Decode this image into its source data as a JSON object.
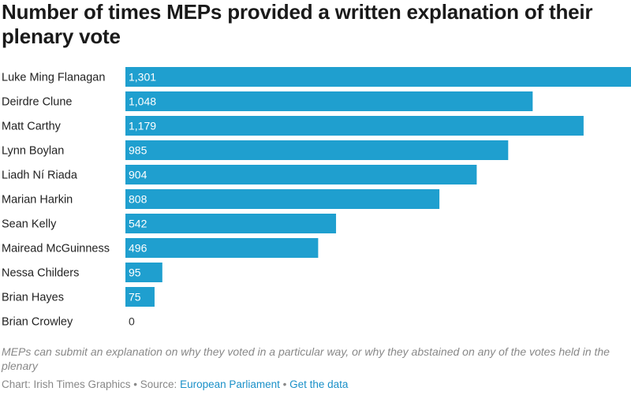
{
  "title": "Number of times MEPs provided a written explanation of their plenary vote",
  "note": "MEPs can submit an explanation on why they voted in a particular way, or why they abstained on any of the votes held in the plenary",
  "footer": {
    "credit": "Chart: Irish Times Graphics",
    "sep1": " • Source: ",
    "source": "European Parliament",
    "sep2": " • ",
    "data_link": "Get the data"
  },
  "colors": {
    "bar": "#1f9fcf",
    "label_inside": "#ffffff",
    "label_outside": "#333333"
  },
  "chart_data": {
    "type": "bar",
    "orientation": "horizontal",
    "categories": [
      "Luke Ming Flanagan",
      "Deirdre Clune",
      "Matt Carthy",
      "Lynn Boylan",
      "Liadh Ní Riada",
      "Marian Harkin",
      "Sean Kelly",
      "Mairead McGuinness",
      "Nessa Childers",
      "Brian Hayes",
      "Brian Crowley"
    ],
    "values": [
      1301,
      1048,
      1179,
      985,
      904,
      808,
      542,
      496,
      95,
      75,
      0
    ],
    "value_labels": [
      "1,301",
      "1,048",
      "1,179",
      "985",
      "904",
      "808",
      "542",
      "496",
      "95",
      "75",
      "0"
    ],
    "xlim": [
      0,
      1301
    ],
    "grid": false,
    "legend": "none"
  }
}
